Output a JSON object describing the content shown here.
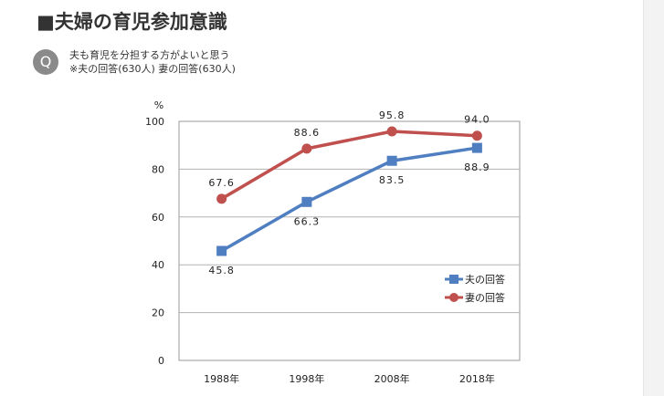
{
  "page": {
    "title": "■夫婦の育児参加意識",
    "question_badge": "Q",
    "question_lines": [
      "夫も育児を分担する方がよいと思う",
      "※夫の回答(630人) 妻の回答(630人)"
    ]
  },
  "chart_data": {
    "type": "line",
    "title": "",
    "xlabel": "",
    "ylabel": "%",
    "categories": [
      "1988年",
      "1998年",
      "2008年",
      "2018年"
    ],
    "ylim": [
      0,
      100
    ],
    "yticks": [
      0,
      20,
      40,
      60,
      80,
      100
    ],
    "grid": true,
    "legend_position": "bottom-right",
    "series": [
      {
        "name": "夫の回答",
        "values": [
          45.8,
          66.3,
          83.5,
          88.9
        ],
        "color": "#4f7fc1",
        "marker": "square",
        "labels": [
          "45.8",
          "66.3",
          "83.5",
          "88.9"
        ],
        "label_position": "below"
      },
      {
        "name": "妻の回答",
        "values": [
          67.6,
          88.6,
          95.8,
          94.0
        ],
        "color": "#c0504d",
        "marker": "circle",
        "labels": [
          "67.6",
          "88.6",
          "95.8",
          "94.0"
        ],
        "label_position": "above"
      }
    ]
  }
}
